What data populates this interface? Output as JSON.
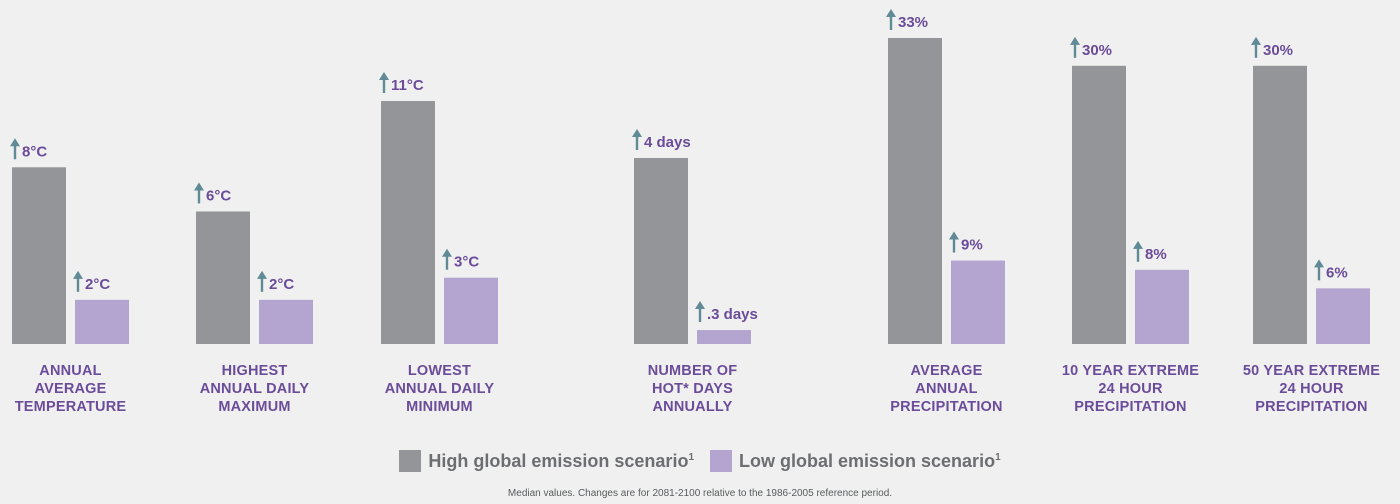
{
  "chart_data": {
    "type": "bar",
    "categories": [
      [
        "ANNUAL",
        "AVERAGE",
        "TEMPERATURE"
      ],
      [
        "HIGHEST",
        "ANNUAL DAILY",
        "MAXIMUM"
      ],
      [
        "LOWEST",
        "ANNUAL DAILY",
        "MINIMUM"
      ],
      [
        "NUMBER OF",
        "HOT* DAYS",
        "ANNUALLY"
      ],
      [
        "AVERAGE",
        "ANNUAL",
        "PRECIPITATION"
      ],
      [
        "10 YEAR EXTREME",
        "24 HOUR",
        "PRECIPITATION"
      ],
      [
        "50 YEAR EXTREME",
        "24 HOUR",
        "PRECIPITATION"
      ]
    ],
    "series": [
      {
        "name": "High global emission scenario",
        "color": "#939598",
        "values": [
          8,
          6,
          11,
          4,
          33,
          30,
          30
        ],
        "labels": [
          "8°C",
          "6°C",
          "11°C",
          "4 days",
          "33%",
          "30%",
          "30%"
        ]
      },
      {
        "name": "Low global emission scenario",
        "color": "#b3a5cf",
        "values": [
          2,
          2,
          3,
          0.3,
          9,
          8,
          6
        ],
        "labels": [
          "2°C",
          "2°C",
          "3°C",
          ".3 days",
          "9%",
          "8%",
          "6%"
        ]
      }
    ],
    "label_color": "#6b4c9a",
    "arrow_color": "#5f8a96",
    "category_label_color": "#6b4c9a",
    "legend_superscript": "1",
    "footnote": "Median values. Changes are for 2081-2100 relative to the 1986-2005 reference period."
  }
}
